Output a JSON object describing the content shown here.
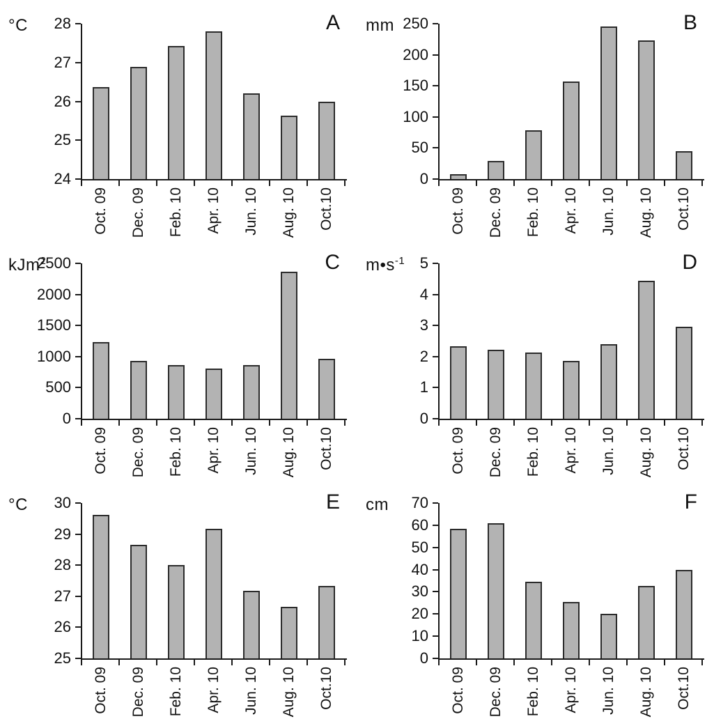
{
  "figure": {
    "bar_fill": "#b3b3b3",
    "bar_border": "#2b2b2b",
    "axis_color": "#1a1a1a",
    "text_color": "#111111",
    "layout": "2x3 grid of panels, no gridlines, no legend"
  },
  "categories": [
    "Oct. 09",
    "Dec. 09",
    "Feb. 10",
    "Apr. 10",
    "Jun. 10",
    "Aug. 10",
    "Oct.10"
  ],
  "chart_data": [
    {
      "type": "bar",
      "panel": "A",
      "ylabel_base": "°C",
      "ylabel_sup": "",
      "ylim": [
        24,
        28
      ],
      "ytick": 1,
      "grid": false,
      "legend": false,
      "categories": [
        "Oct. 09",
        "Dec. 09",
        "Feb. 10",
        "Apr. 10",
        "Jun. 10",
        "Aug. 10",
        "Oct.10"
      ],
      "values": [
        26.37,
        26.88,
        27.42,
        27.8,
        26.2,
        25.63,
        26.0
      ]
    },
    {
      "type": "bar",
      "panel": "B",
      "ylabel_base": "mm",
      "ylabel_sup": "",
      "ylim": [
        0,
        250
      ],
      "ytick": 50,
      "grid": false,
      "legend": false,
      "categories": [
        "Oct. 09",
        "Dec. 09",
        "Feb. 10",
        "Apr. 10",
        "Jun. 10",
        "Aug. 10",
        "Oct.10"
      ],
      "values": [
        8,
        29,
        78,
        157,
        246,
        223,
        45
      ]
    },
    {
      "type": "bar",
      "panel": "C",
      "ylabel_base": "kJm",
      "ylabel_sup": "2",
      "ylim": [
        0,
        2500
      ],
      "ytick": 500,
      "grid": false,
      "legend": false,
      "categories": [
        "Oct. 09",
        "Dec. 09",
        "Feb. 10",
        "Apr. 10",
        "Jun. 10",
        "Aug. 10",
        "Oct.10"
      ],
      "values": [
        1230,
        935,
        865,
        810,
        865,
        2360,
        960
      ]
    },
    {
      "type": "bar",
      "panel": "D",
      "ylabel_base": "m•s",
      "ylabel_sup": "-1",
      "ylim": [
        0,
        5
      ],
      "ytick": 1,
      "grid": false,
      "legend": false,
      "categories": [
        "Oct. 09",
        "Dec. 09",
        "Feb. 10",
        "Apr. 10",
        "Jun. 10",
        "Aug. 10",
        "Oct.10"
      ],
      "values": [
        2.33,
        2.23,
        2.12,
        1.87,
        2.4,
        4.43,
        2.97
      ]
    },
    {
      "type": "bar",
      "panel": "E",
      "ylabel_base": "°C",
      "ylabel_sup": "",
      "ylim": [
        25,
        30
      ],
      "ytick": 1,
      "grid": false,
      "legend": false,
      "categories": [
        "Oct. 09",
        "Dec. 09",
        "Feb. 10",
        "Apr. 10",
        "Jun. 10",
        "Aug. 10",
        "Oct.10"
      ],
      "values": [
        29.63,
        28.65,
        28.0,
        29.17,
        27.17,
        26.67,
        27.33
      ]
    },
    {
      "type": "bar",
      "panel": "F",
      "ylabel_base": "cm",
      "ylabel_sup": "",
      "ylim": [
        0,
        70
      ],
      "ytick": 10,
      "grid": false,
      "legend": false,
      "categories": [
        "Oct. 09",
        "Dec. 09",
        "Feb. 10",
        "Apr. 10",
        "Jun. 10",
        "Aug. 10",
        "Oct.10"
      ],
      "values": [
        58.5,
        61,
        34.5,
        25.5,
        20,
        32.5,
        40
      ]
    }
  ]
}
